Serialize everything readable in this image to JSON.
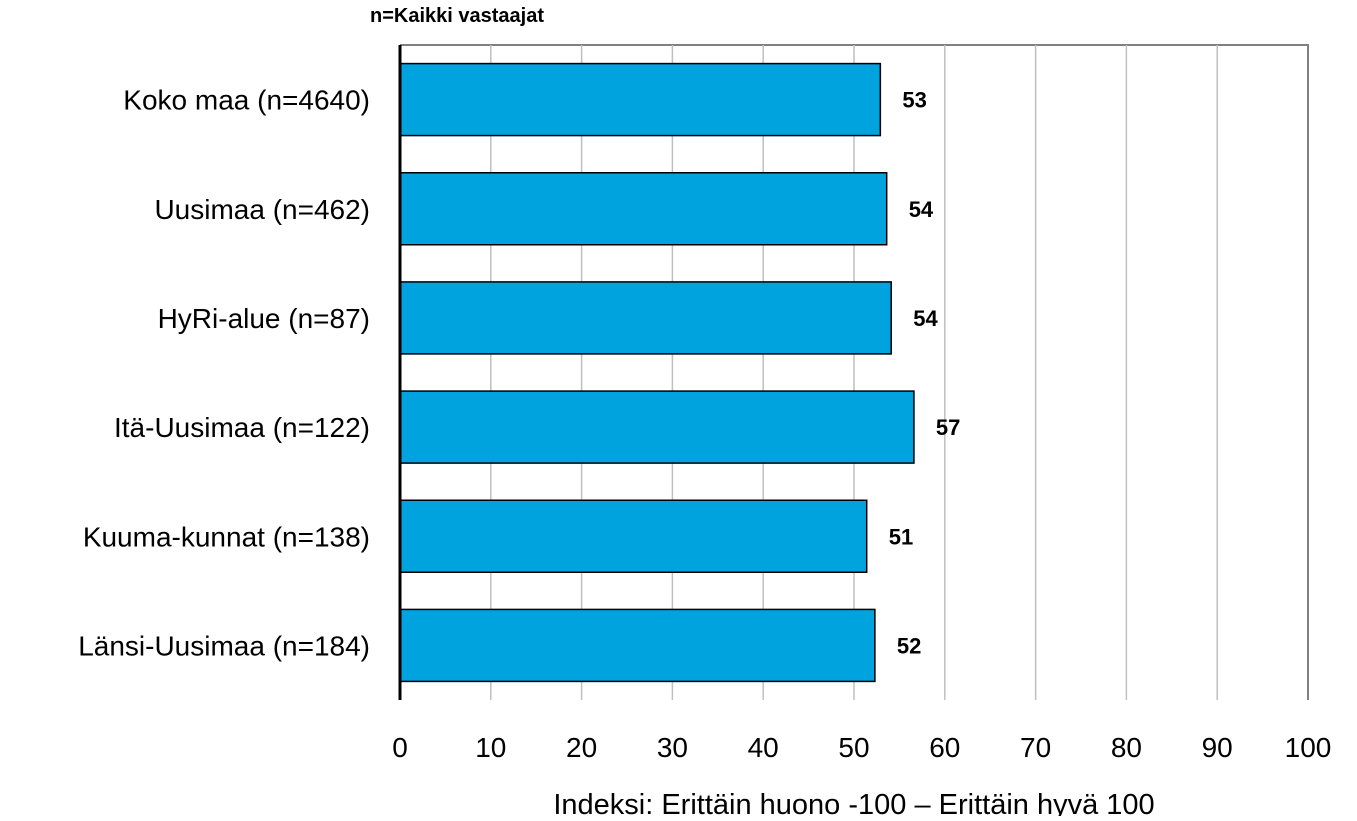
{
  "chart_data": {
    "type": "bar",
    "orientation": "horizontal",
    "subtitle": "n=Kaikki vastaajat",
    "categories": [
      "Koko maa (n=4640)",
      "Uusimaa (n=462)",
      "HyRi-alue (n=87)",
      "Itä-Uusimaa (n=122)",
      "Kuuma-kunnat (n=138)",
      "Länsi-Uusimaa (n=184)"
    ],
    "values": [
      52.9,
      53.6,
      54.1,
      56.6,
      51.4,
      52.3
    ],
    "data_labels": [
      "53",
      "54",
      "54",
      "57",
      "51",
      "52"
    ],
    "xlabel": "Indeksi: Erittäin huono -100 – Erittäin hyvä 100",
    "xlim": [
      0,
      100
    ],
    "xticks": [
      "0",
      "10",
      "20",
      "30",
      "40",
      "50",
      "60",
      "70",
      "80",
      "90",
      "100"
    ],
    "grid": "vertical",
    "colors": {
      "bar": "#00A3DD",
      "bar_edge": "#000000",
      "grid": "#BFBFBF",
      "frame": "#808080",
      "axis": "#000000"
    }
  }
}
